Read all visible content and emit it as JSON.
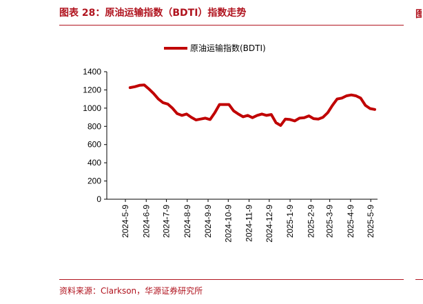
{
  "header": {
    "title": "图表 28：原油运输指数（BDTI）指数走势",
    "edge_mark": "图"
  },
  "footer": {
    "source": "资料来源：Clarkson，华源证券研究所"
  },
  "colors": {
    "accent": "#b0131e",
    "series": "#c00000"
  },
  "chart_data": {
    "type": "line",
    "title": "",
    "xlabel": "",
    "ylabel": "",
    "ylim": [
      0,
      1400
    ],
    "yticks": [
      0,
      200,
      400,
      600,
      800,
      1000,
      1200,
      1400
    ],
    "xlim": [
      "2024-05-09",
      "2025-05-16"
    ],
    "xticks": [
      "2024-5-9",
      "2024-6-9",
      "2024-7-9",
      "2024-8-9",
      "2024-9-9",
      "2024-10-9",
      "2024-11-9",
      "2024-12-9",
      "2025-1-9",
      "2025-2-9",
      "2025-3-9",
      "2025-4-9",
      "2025-5-9"
    ],
    "grid": false,
    "legend": "top-center",
    "series": [
      {
        "name": "原油运输指数(BDTI)",
        "x": [
          "2024-05-16",
          "2024-05-23",
          "2024-05-30",
          "2024-06-06",
          "2024-06-13",
          "2024-06-20",
          "2024-06-27",
          "2024-07-04",
          "2024-07-11",
          "2024-07-18",
          "2024-07-25",
          "2024-08-01",
          "2024-08-08",
          "2024-08-15",
          "2024-08-22",
          "2024-08-29",
          "2024-09-05",
          "2024-09-12",
          "2024-09-19",
          "2024-09-26",
          "2024-10-03",
          "2024-10-10",
          "2024-10-17",
          "2024-10-24",
          "2024-10-31",
          "2024-11-07",
          "2024-11-14",
          "2024-11-21",
          "2024-11-28",
          "2024-12-05",
          "2024-12-12",
          "2024-12-19",
          "2024-12-26",
          "2025-01-02",
          "2025-01-09",
          "2025-01-16",
          "2025-01-23",
          "2025-01-30",
          "2025-02-06",
          "2025-02-13",
          "2025-02-20",
          "2025-02-27",
          "2025-03-06",
          "2025-03-13",
          "2025-03-20",
          "2025-03-27",
          "2025-04-03",
          "2025-04-10",
          "2025-04-17",
          "2025-04-24",
          "2025-05-01",
          "2025-05-08",
          "2025-05-15"
        ],
        "values": [
          1225,
          1235,
          1250,
          1255,
          1210,
          1160,
          1100,
          1060,
          1045,
          1000,
          940,
          920,
          935,
          900,
          870,
          880,
          890,
          875,
          950,
          1040,
          1040,
          1040,
          970,
          935,
          905,
          920,
          895,
          920,
          935,
          920,
          930,
          840,
          810,
          880,
          875,
          860,
          890,
          895,
          915,
          885,
          880,
          900,
          950,
          1030,
          1100,
          1110,
          1135,
          1145,
          1135,
          1110,
          1030,
          995,
          985
        ]
      }
    ]
  }
}
